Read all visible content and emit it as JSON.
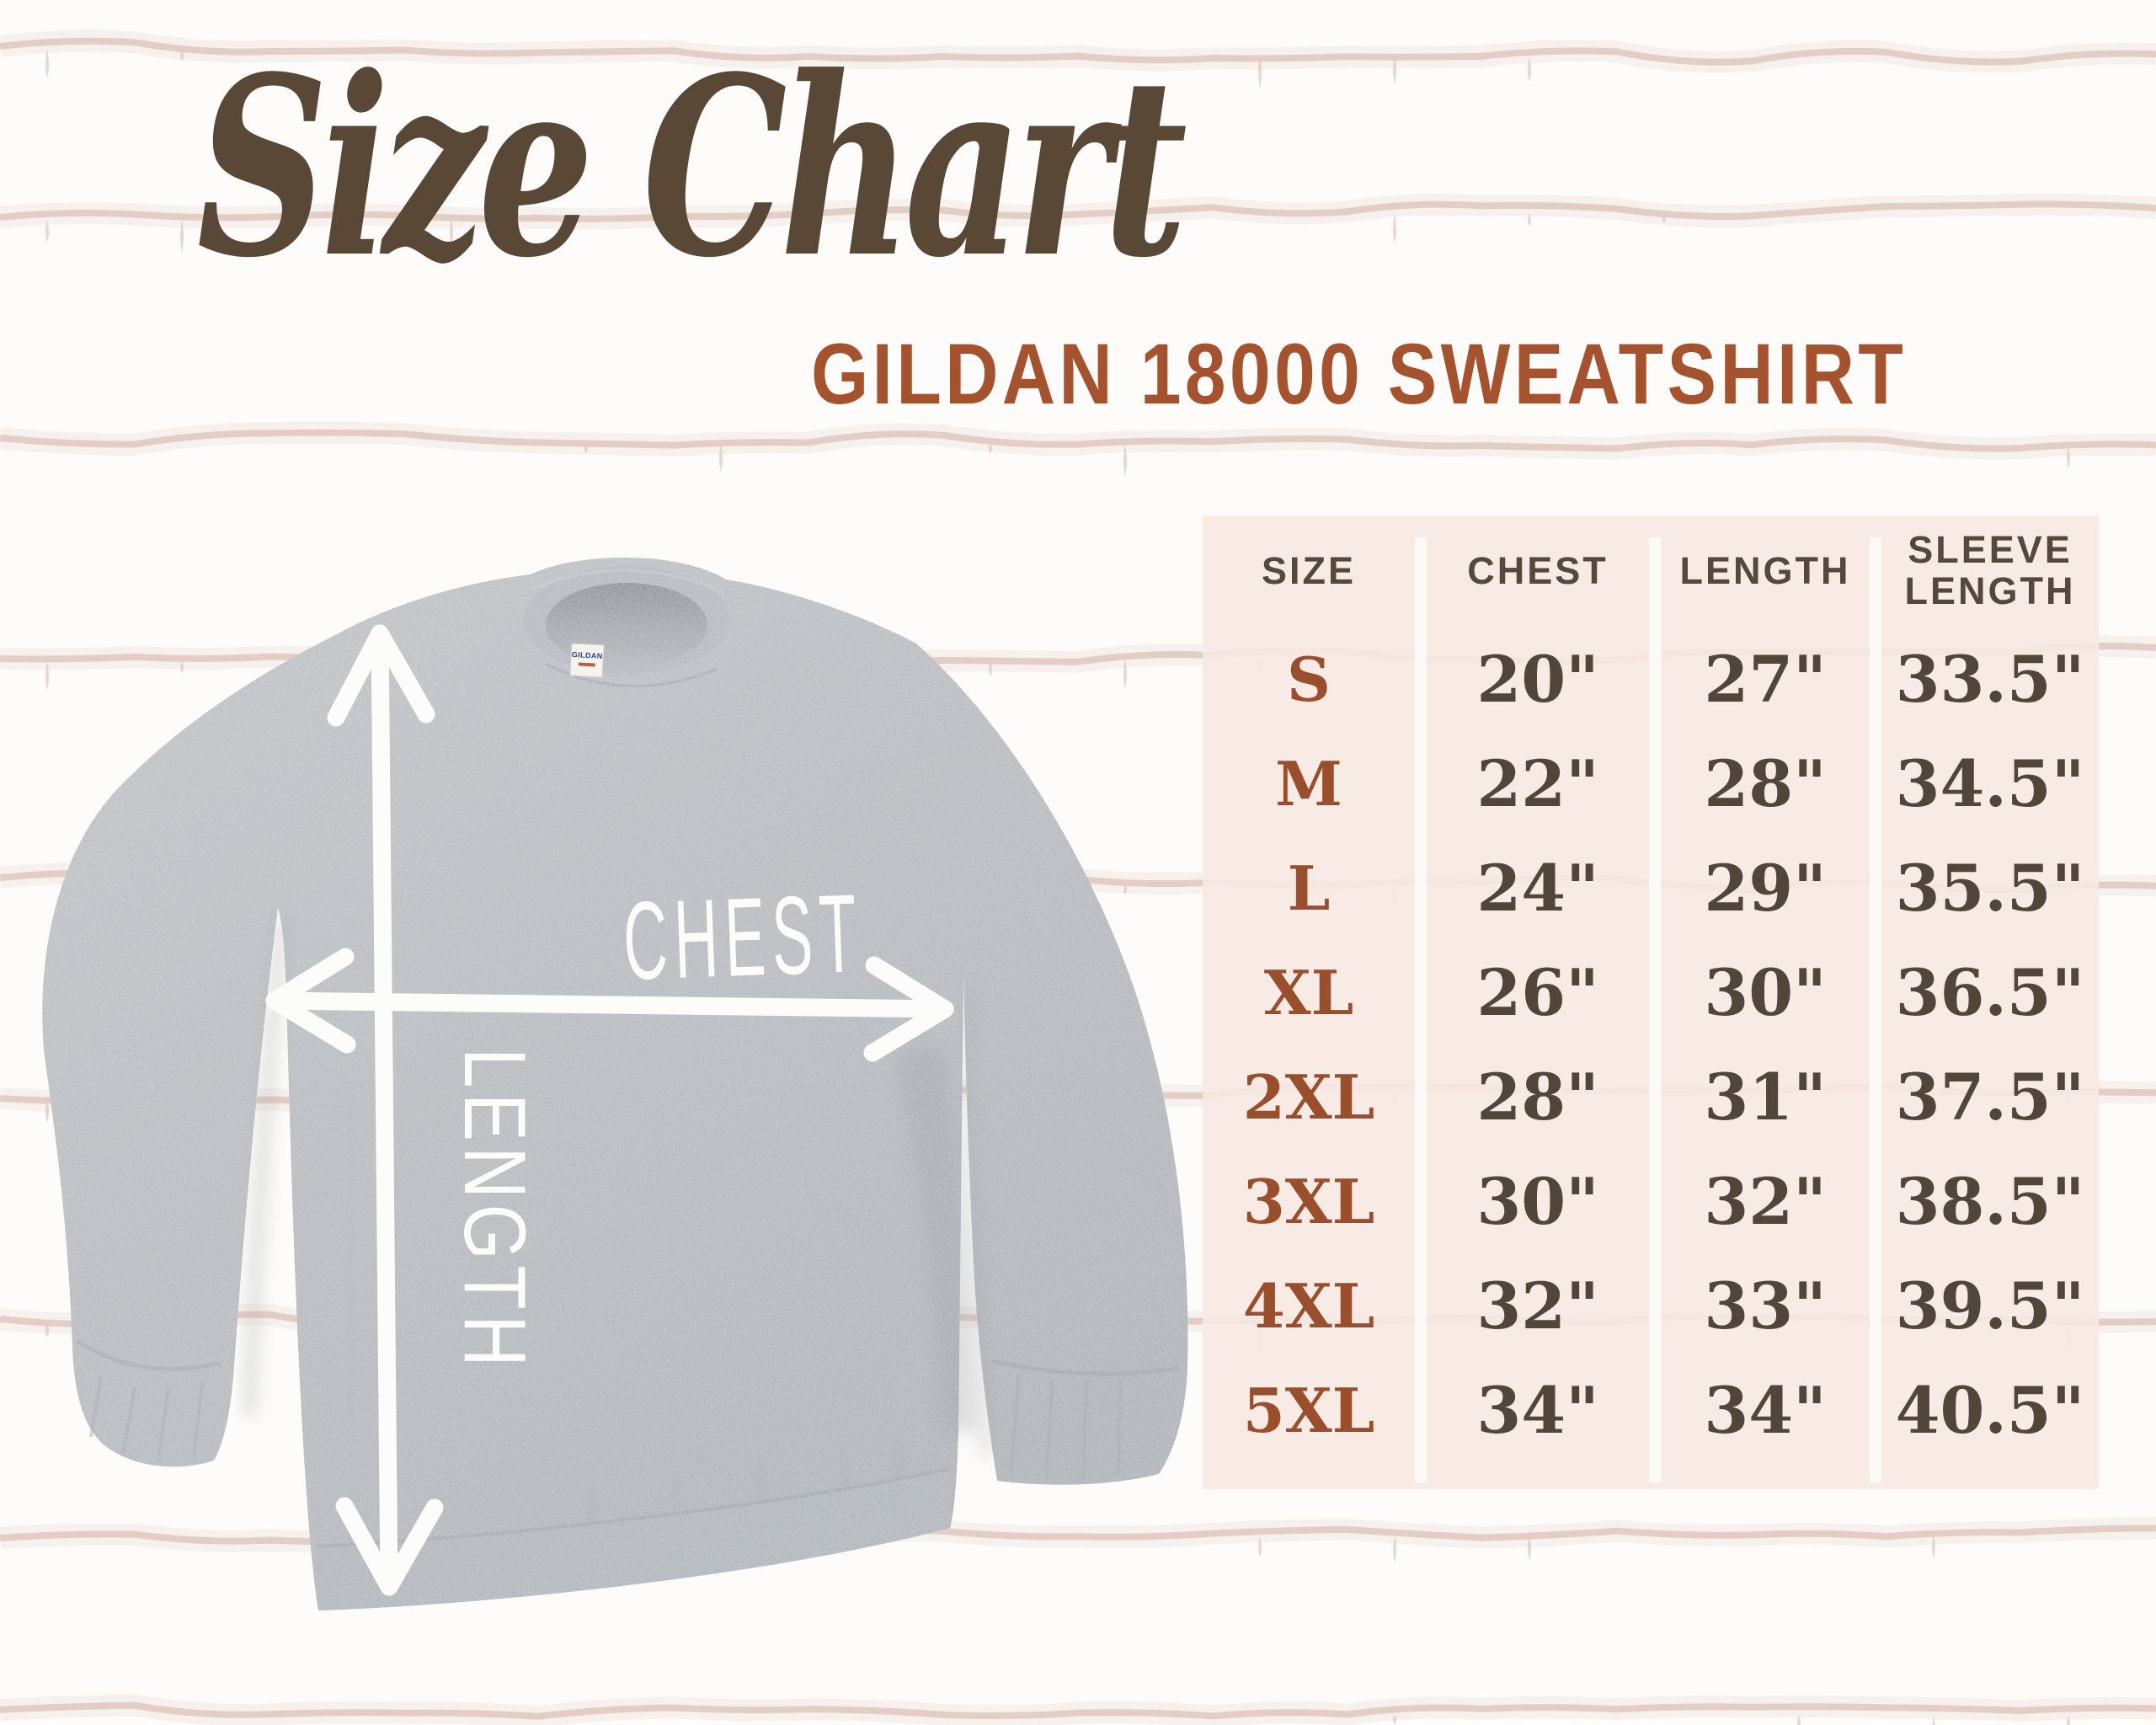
{
  "header": {
    "title": "Size Chart",
    "subtitle": "GILDAN 18000 SWEATSHIRT"
  },
  "diagram": {
    "chest_label": "CHEST",
    "length_label": "LENGTH",
    "tag_text": "GILDAN"
  },
  "size_table": {
    "headers": [
      "SIZE",
      "CHEST",
      "LENGTH",
      "SLEEVE LENGTH"
    ],
    "rows": [
      {
        "size": "S",
        "chest": "20\"",
        "length": "27\"",
        "sleeve_length": "33.5\""
      },
      {
        "size": "M",
        "chest": "22\"",
        "length": "28\"",
        "sleeve_length": "34.5\""
      },
      {
        "size": "L",
        "chest": "24\"",
        "length": "29\"",
        "sleeve_length": "35.5\""
      },
      {
        "size": "XL",
        "chest": "26\"",
        "length": "30\"",
        "sleeve_length": "36.5\""
      },
      {
        "size": "2XL",
        "chest": "28\"",
        "length": "31\"",
        "sleeve_length": "37.5\""
      },
      {
        "size": "3XL",
        "chest": "30\"",
        "length": "32\"",
        "sleeve_length": "38.5\""
      },
      {
        "size": "4XL",
        "chest": "32\"",
        "length": "33\"",
        "sleeve_length": "39.5\""
      },
      {
        "size": "5XL",
        "chest": "34\"",
        "length": "34\"",
        "sleeve_length": "40.5\""
      }
    ]
  },
  "colors": {
    "title_brown": "#5a4836",
    "accent_rust": "#a5532e",
    "size_rust": "#9a4e2b",
    "value_brown": "#52453a",
    "header_brown": "#56483d",
    "panel_pink": "#f7e9e3",
    "divider_white": "#fcf9f7",
    "seam_pink": "#ddc5ba",
    "shirt_gray": "#b4b7bb",
    "arrow_white": "#fcfcfa"
  }
}
